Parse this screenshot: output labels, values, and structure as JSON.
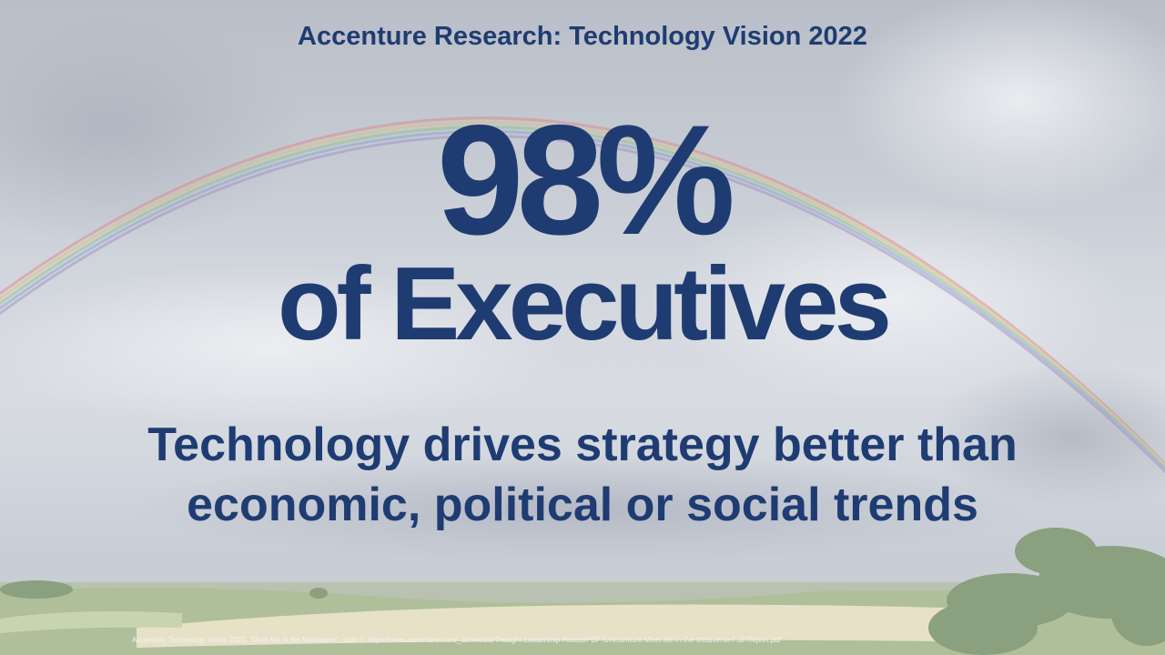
{
  "slide": {
    "headline": "Accenture Research: Technology Vision 2022",
    "stat_value": "98%",
    "stat_subject": "of Executives",
    "tagline_line1": "Technology drives strategy better than",
    "tagline_line2": "economic, political or social trends",
    "citation": "Accenture, Technology Vision 2022, \"Meet Me in the Metaverse\", slide 7. https://www.accenture.com/_acnmedia/Thought-Leadership-Assets/PDF-5/Accenture-Meet-Me-in-the-Metaverse-Full-Report.pdf"
  },
  "colors": {
    "text_primary": "#1f3c72",
    "citation_text": "#f2f3f5",
    "sky": "#c9ced6",
    "field_light": "#e6e1c7",
    "field_green": "#aebf9a",
    "trees": "#8aa07f"
  }
}
